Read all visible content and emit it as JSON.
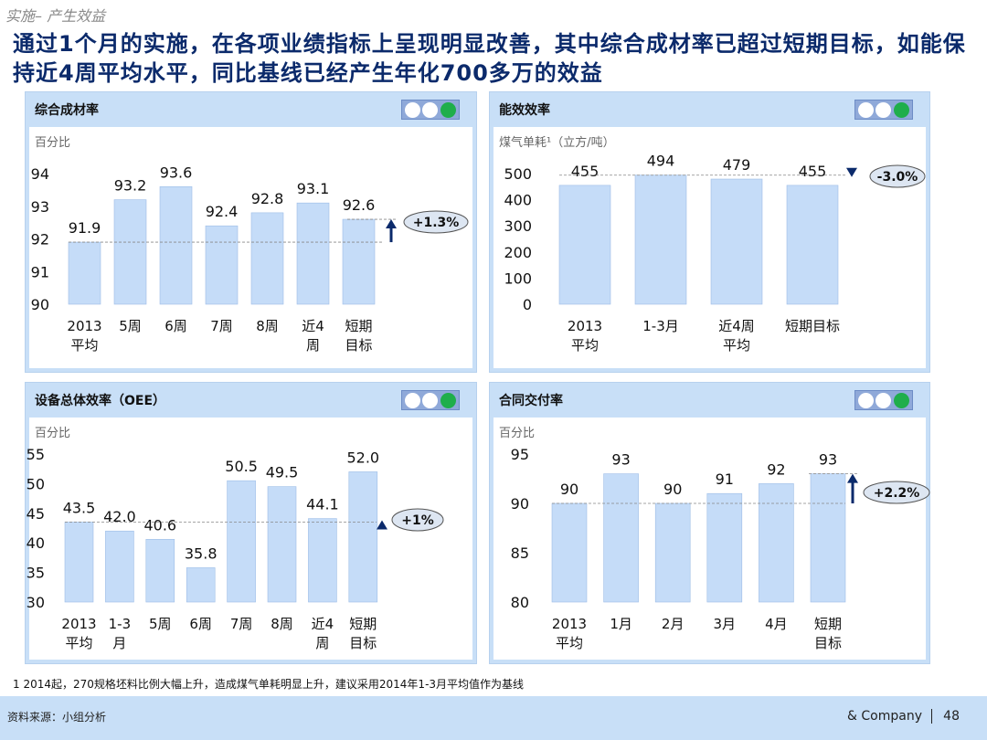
{
  "kicker": "实施– 产生效益",
  "headline": "通过1个月的实施，在各项业绩指标上呈现明显改善，其中综合成材率已超过短期目标，如能保持近4周平均水平，同比基线已经产生年化700多万的效益",
  "colors": {
    "bar": "#c5dcf8",
    "bar_edge": "#9dbde6",
    "panel": "#c8dff7",
    "arrow": "#0b2a6b",
    "light_on": "#1fae4b"
  },
  "footnote": "1 2014起，270规格坯料比例大幅上升，造成煤气单耗明显上升，建议采用2014年1-3月平均值作为基线",
  "footer": {
    "source": "资料来源：小组分析",
    "company": "& Company",
    "page": "48"
  },
  "chart_data": [
    {
      "type": "bar",
      "title": "综合成材率",
      "unit": "百分比",
      "categories": [
        "2013\n平均",
        "5周",
        "6周",
        "7周",
        "8周",
        "近4\n周",
        "短期\n目标"
      ],
      "values": [
        91.9,
        93.2,
        93.6,
        92.4,
        92.8,
        93.1,
        92.6
      ],
      "ylim": [
        90,
        94
      ],
      "yticks": [
        90,
        91,
        92,
        93,
        94
      ],
      "baseline": 91.9,
      "callout": "+1.3%",
      "indicator": "arrow-up",
      "status_lights": [
        "off",
        "off",
        "green"
      ]
    },
    {
      "type": "bar",
      "title": "能效效率",
      "unit": "煤气单耗¹（立方/吨）",
      "categories": [
        "2013\n平均",
        "1-3月",
        "近4周\n平均",
        "短期目标"
      ],
      "values": [
        455,
        494,
        479,
        455
      ],
      "ylim": [
        0,
        500
      ],
      "yticks": [
        0,
        100,
        200,
        300,
        400,
        500
      ],
      "baseline": 494,
      "callout": "-3.0%",
      "indicator": "triangle-down",
      "status_lights": [
        "off",
        "off",
        "green"
      ]
    },
    {
      "type": "bar",
      "title": "设备总体效率（OEE）",
      "unit": "百分比",
      "categories": [
        "2013\n平均",
        "1-3\n月",
        "5周",
        "6周",
        "7周",
        "8周",
        "近4\n周",
        "短期\n目标"
      ],
      "values": [
        43.5,
        42.0,
        40.6,
        35.8,
        50.5,
        49.5,
        44.1,
        52.0
      ],
      "labels": [
        "43.5",
        "42.0",
        "40.6",
        "35.8",
        "50.5",
        "49.5",
        "44.1",
        "52.0"
      ],
      "ylim": [
        30,
        55
      ],
      "yticks": [
        30,
        35,
        40,
        45,
        50,
        55
      ],
      "baseline": 43.5,
      "callout": "+1%",
      "indicator": "triangle-up",
      "status_lights": [
        "off",
        "off",
        "green"
      ]
    },
    {
      "type": "bar",
      "title": "合同交付率",
      "unit": "百分比",
      "categories": [
        "2013\n平均",
        "1月",
        "2月",
        "3月",
        "4月",
        "短期\n目标"
      ],
      "values": [
        90,
        93,
        90,
        91,
        92,
        93
      ],
      "ylim": [
        80,
        95
      ],
      "yticks": [
        80,
        85,
        90,
        95
      ],
      "baseline": 90,
      "callout": "+2.2%",
      "indicator": "arrow-up",
      "status_lights": [
        "off",
        "off",
        "green"
      ]
    }
  ]
}
